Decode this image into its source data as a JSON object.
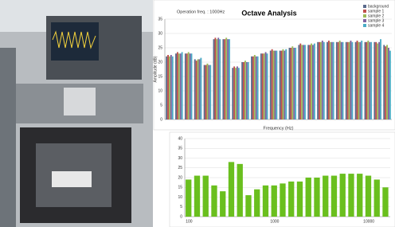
{
  "chart_data": [
    {
      "type": "bar",
      "title": "Octave Analysis",
      "annotation": "Operation freq. : 1000Hz",
      "xlabel": "Frequency (Hz)",
      "ylabel": "Amplitude (dB)",
      "categories": [
        null,
        null,
        null,
        null,
        null,
        null,
        null,
        null,
        null,
        null,
        null,
        null,
        null,
        null,
        null,
        null,
        null,
        null,
        null,
        null,
        null,
        null,
        null,
        null
      ],
      "series": [
        {
          "name": "background",
          "color": "#5b6b8c",
          "values": [
            22,
            23,
            23,
            21,
            19,
            28,
            28,
            18,
            20,
            22,
            23,
            24,
            24,
            25,
            26,
            26,
            27,
            27,
            27,
            27,
            27,
            27,
            27,
            26
          ]
        },
        {
          "name": "sample 1",
          "color": "#c0504d",
          "values": [
            22.5,
            23.5,
            23,
            20.5,
            19,
            28.5,
            28,
            18.5,
            20,
            22,
            23,
            24.5,
            24,
            25,
            26.5,
            26,
            27,
            27.5,
            27,
            27,
            27.5,
            27,
            27,
            25.5
          ]
        },
        {
          "name": "sample 2",
          "color": "#9bbb59",
          "values": [
            22,
            23,
            23.5,
            21,
            19.5,
            28,
            28.5,
            18,
            20.5,
            22.5,
            23,
            24,
            24.5,
            25.5,
            26,
            26.5,
            27,
            27,
            27.5,
            27,
            27,
            27.5,
            26.5,
            26
          ]
        },
        {
          "name": "sample 3",
          "color": "#8064a2",
          "values": [
            22.5,
            23,
            23,
            21,
            19,
            28.5,
            28,
            18.5,
            20,
            22,
            23.5,
            24,
            24,
            25,
            26,
            26,
            27.5,
            27,
            27,
            27.5,
            27,
            27,
            27,
            25
          ]
        },
        {
          "name": "sample 4",
          "color": "#4bacc6",
          "values": [
            22,
            23.5,
            23,
            21.5,
            19,
            28,
            28,
            18,
            20,
            22,
            23,
            24,
            24.5,
            25,
            26,
            26.5,
            27,
            27,
            27,
            27,
            27.5,
            27,
            28,
            24
          ]
        }
      ],
      "ylim": [
        0,
        35
      ],
      "yticks": [
        0,
        5,
        10,
        15,
        20,
        25,
        30,
        35
      ],
      "grid": true,
      "legend": "top-right"
    },
    {
      "type": "bar",
      "color": "#6abf1e",
      "categories": [
        "100",
        null,
        null,
        null,
        null,
        null,
        null,
        null,
        null,
        null,
        "1000",
        null,
        null,
        null,
        null,
        null,
        null,
        null,
        null,
        null,
        null,
        "10000",
        null,
        null
      ],
      "values": [
        19,
        21,
        21,
        16,
        13,
        28,
        27,
        11,
        14,
        16,
        16,
        17,
        18,
        18,
        20,
        20,
        21,
        21,
        22,
        22,
        22,
        21,
        19,
        15
      ],
      "ylim": [
        0,
        40
      ],
      "yticks": [
        0,
        5,
        10,
        15,
        20,
        25,
        30,
        35,
        40
      ],
      "grid": true
    }
  ]
}
